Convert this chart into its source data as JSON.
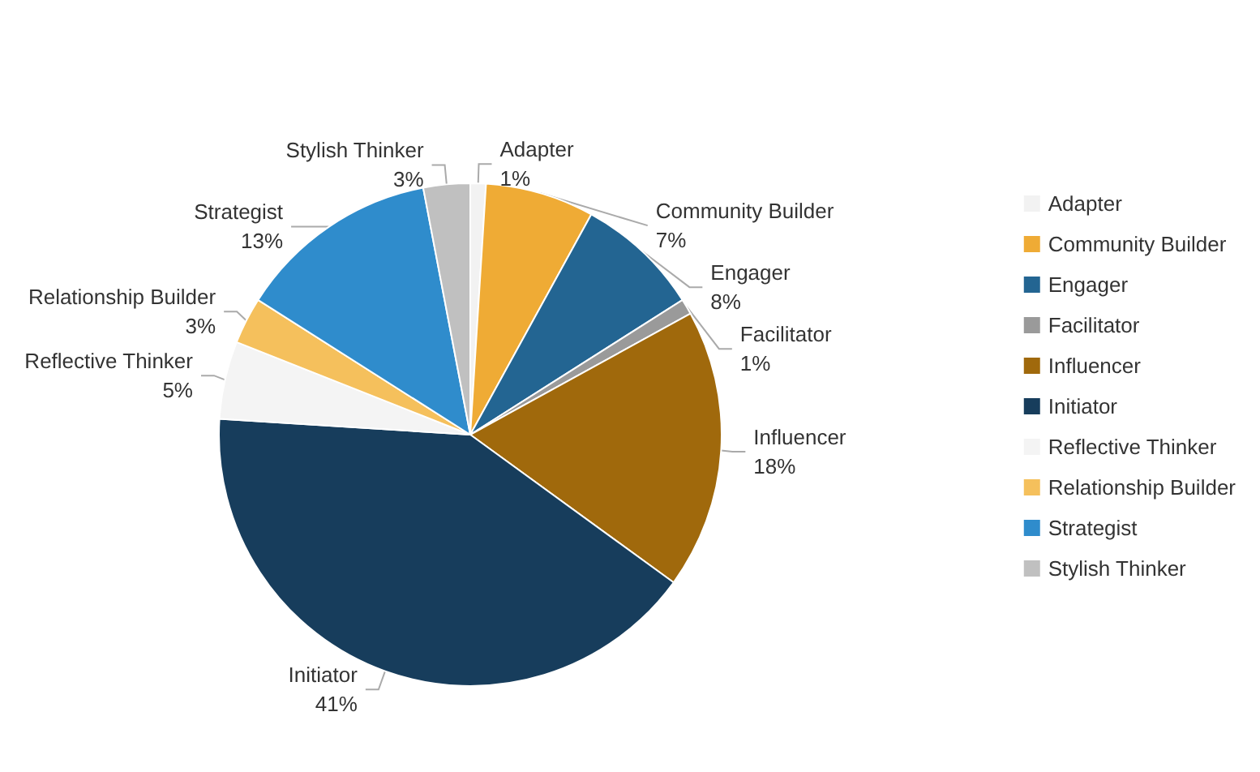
{
  "chart_data": {
    "type": "pie",
    "categories": [
      "Adapter",
      "Community Builder",
      "Engager",
      "Facilitator",
      "Influencer",
      "Initiator",
      "Reflective Thinker",
      "Relationship Builder",
      "Strategist",
      "Stylish Thinker"
    ],
    "values": [
      1,
      7,
      8,
      1,
      18,
      41,
      5,
      3,
      13,
      3
    ],
    "value_labels": [
      "1%",
      "7%",
      "8%",
      "1%",
      "18%",
      "41%",
      "5%",
      "3%",
      "13%",
      "3%"
    ],
    "colors": [
      "#f2f2f2",
      "#efab35",
      "#236592",
      "#9a9a9a",
      "#a0690c",
      "#173d5c",
      "#f4f4f4",
      "#f5c05c",
      "#2f8ccc",
      "#c0c0c0"
    ],
    "legend": "right"
  }
}
